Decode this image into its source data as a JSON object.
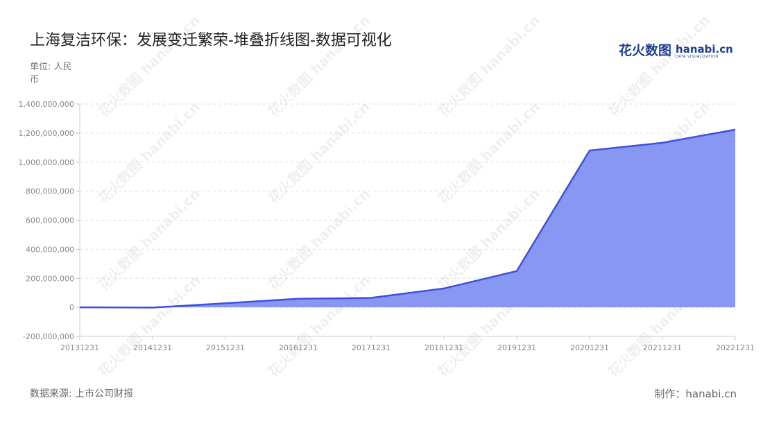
{
  "title": "上海复洁环保：发展变迁繁荣-堆叠折线图-数据可视化",
  "unit": "单位: 人民币",
  "source": "数据来源: 上市公司财报",
  "maker": "制作：hanabi.cn",
  "logo": {
    "cn": "花火数图",
    "en": "hanabi.cn",
    "sub": "DATA VISUALIZATION"
  },
  "watermark": "花火数图 hanabi.cn",
  "colors": {
    "line": "#3b4fe4",
    "area": "#8797f2"
  },
  "chart_data": {
    "type": "area",
    "x": [
      "20131231",
      "20141231",
      "20151231",
      "20161231",
      "20171231",
      "20181231",
      "20191231",
      "20201231",
      "20211231",
      "20221231"
    ],
    "series": [
      {
        "values": [
          0,
          -2000000,
          28000000,
          59000000,
          65000000,
          130000000,
          250000000,
          1080000000,
          1133000000,
          1224000000
        ]
      }
    ],
    "ylim": [
      -200000000,
      1400000000
    ],
    "yticks": [
      -200000000,
      0,
      200000000,
      400000000,
      600000000,
      800000000,
      1000000000,
      1200000000,
      1400000000
    ],
    "ytick_labels": [
      "-200,000,000",
      "0",
      "200,000,000",
      "400,000,000",
      "600,000,000",
      "800,000,000",
      "1,000,000,000",
      "1,200,000,000",
      "1,400,000,000"
    ],
    "grid": true
  }
}
